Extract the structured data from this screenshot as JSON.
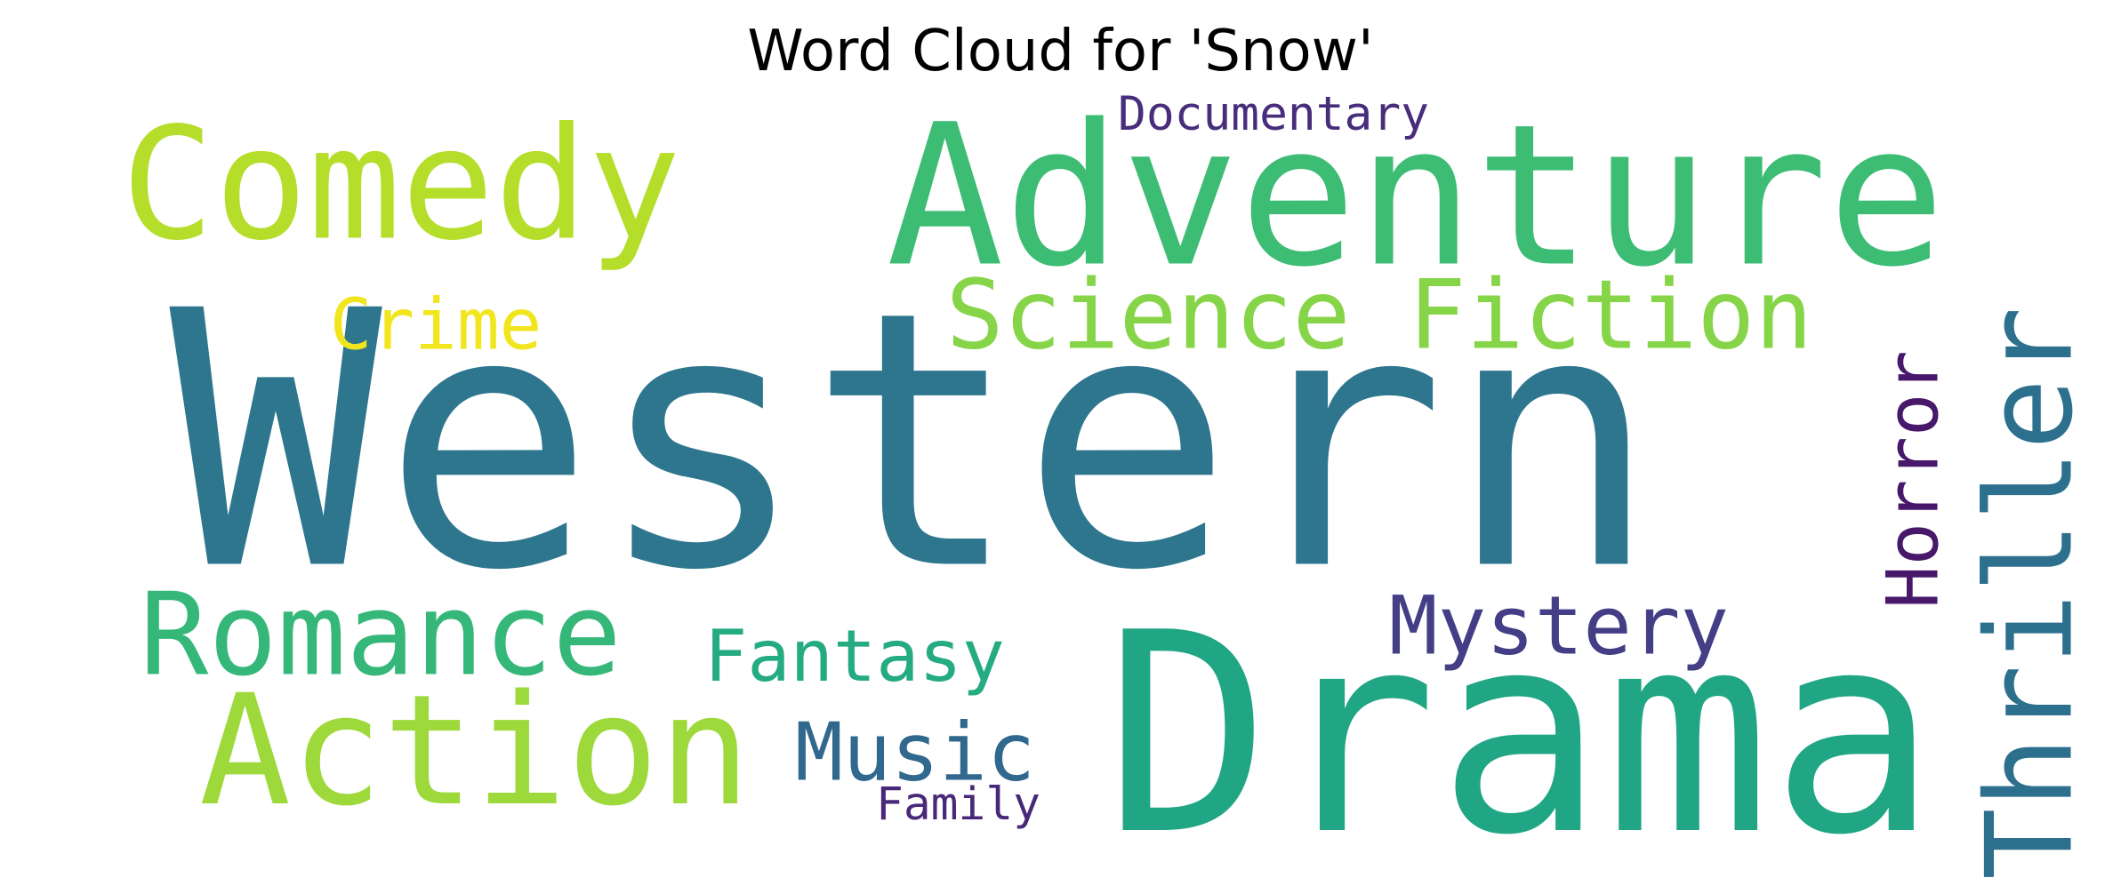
{
  "chart_data": {
    "type": "wordcloud",
    "title": "Word Cloud for 'Snow'",
    "words": [
      {
        "text": "Western",
        "color": "#2e768e"
      },
      {
        "text": "Drama",
        "color": "#21a685"
      },
      {
        "text": "Adventure",
        "color": "#3dbc74"
      },
      {
        "text": "Comedy",
        "color": "#b5de2b"
      },
      {
        "text": "Science Fiction",
        "color": "#86d549"
      },
      {
        "text": "Romance",
        "color": "#35b779"
      },
      {
        "text": "Action",
        "color": "#9dd93b"
      },
      {
        "text": "Thriller",
        "color": "#2d708e"
      },
      {
        "text": "Mystery",
        "color": "#433e85"
      },
      {
        "text": "Fantasy",
        "color": "#25ab82"
      },
      {
        "text": "Crime",
        "color": "#f1e51d"
      },
      {
        "text": "Music",
        "color": "#31688e"
      },
      {
        "text": "Horror",
        "color": "#48186a"
      },
      {
        "text": "Documentary",
        "color": "#472d7b"
      },
      {
        "text": "Family",
        "color": "#482878"
      }
    ]
  }
}
